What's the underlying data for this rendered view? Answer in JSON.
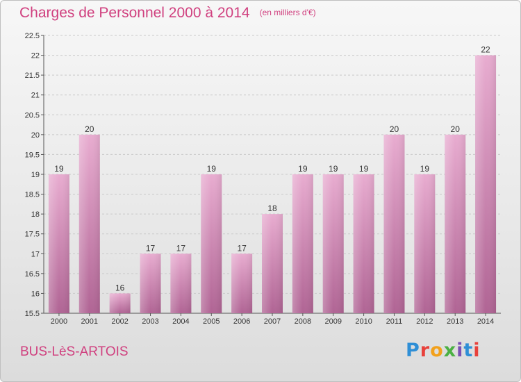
{
  "header": {
    "title": "Charges de Personnel 2000 à 2014",
    "subtitle": "(en milliers d'€)"
  },
  "footer": {
    "commune": "BUS-LèS-ARTOIS",
    "logo_letters": [
      "P",
      "r",
      "o",
      "x",
      "i",
      "t",
      "i"
    ]
  },
  "colors": {
    "title": "#d0407f",
    "bar_light": "#e6a6cb",
    "bar_dark": "#b46a98"
  },
  "chart_data": {
    "type": "bar",
    "title": "Charges de Personnel 2000 à 2014",
    "subtitle": "(en milliers d'€)",
    "xlabel": "",
    "ylabel": "",
    "categories": [
      "2000",
      "2001",
      "2002",
      "2003",
      "2004",
      "2005",
      "2006",
      "2007",
      "2008",
      "2009",
      "2010",
      "2011",
      "2012",
      "2013",
      "2014"
    ],
    "values": [
      19,
      20,
      16,
      17,
      17,
      19,
      17,
      18,
      19,
      19,
      19,
      20,
      19,
      20,
      22
    ],
    "ylim": [
      15.5,
      22.5
    ],
    "yticks": [
      "15.5",
      "16",
      "16.5",
      "17",
      "17.5",
      "18",
      "18.5",
      "19",
      "19.5",
      "20",
      "20.5",
      "21",
      "21.5",
      "22",
      "22.5"
    ],
    "grid": true,
    "legend": "none"
  }
}
